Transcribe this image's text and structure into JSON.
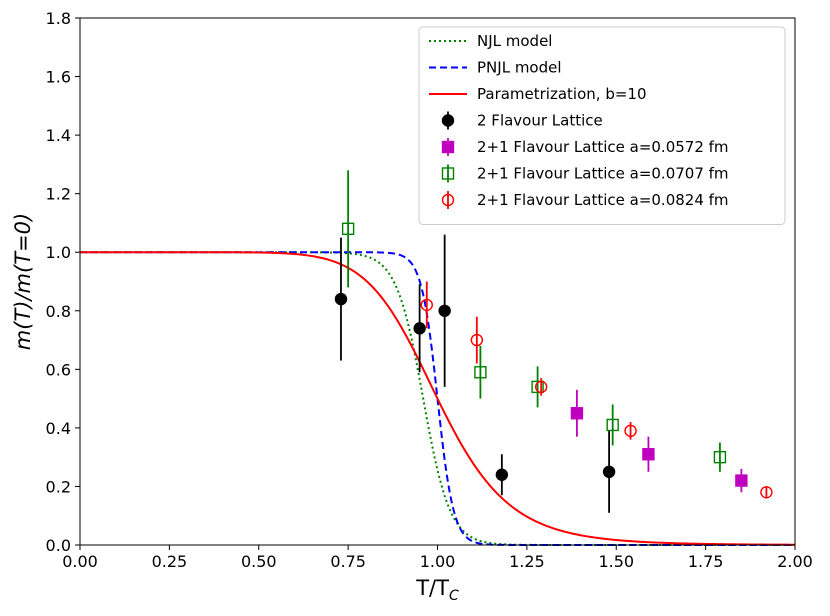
{
  "chart_data": {
    "type": "line",
    "title": "",
    "xlabel": "T/T_C",
    "xlabel_main": "T/T",
    "xlabel_sub": "C",
    "ylabel": "m(T)/m(T=0)",
    "xlim": [
      0.0,
      2.0
    ],
    "ylim": [
      0.0,
      1.8
    ],
    "xticks": [
      0.0,
      0.25,
      0.5,
      0.75,
      1.0,
      1.25,
      1.5,
      1.75,
      2.0
    ],
    "xtick_labels": [
      "0.00",
      "0.25",
      "0.50",
      "0.75",
      "1.00",
      "1.25",
      "1.50",
      "1.75",
      "2.00"
    ],
    "yticks": [
      0.0,
      0.2,
      0.4,
      0.6,
      0.8,
      1.0,
      1.2,
      1.4,
      1.6,
      1.8
    ],
    "ytick_labels": [
      "0.0",
      "0.2",
      "0.4",
      "0.6",
      "0.8",
      "1.0",
      "1.2",
      "1.4",
      "1.6",
      "1.8"
    ],
    "grid": false,
    "legend_position": "top-right",
    "curves": [
      {
        "name": "NJL model",
        "color": "#008000",
        "dash": "dotted",
        "model": {
          "center": 0.96,
          "width": 0.075,
          "kind": "tanh"
        }
      },
      {
        "name": "PNJL model",
        "color": "#0000ff",
        "dash": "dashed",
        "model": {
          "center": 1.0,
          "width": 0.045,
          "kind": "tanh"
        }
      },
      {
        "name": "Parametrization, b=10",
        "color": "#ff0000",
        "dash": "solid",
        "model": {
          "center": 1.0,
          "power": 10,
          "kind": "power"
        }
      }
    ],
    "series": [
      {
        "name": "2 Flavour Lattice",
        "marker": "circle",
        "filled": true,
        "color": "#000000",
        "points": [
          {
            "x": 0.73,
            "y": 0.84,
            "err": 0.21
          },
          {
            "x": 0.95,
            "y": 0.74,
            "err": 0.15
          },
          {
            "x": 1.02,
            "y": 0.8,
            "err": 0.26
          },
          {
            "x": 1.18,
            "y": 0.24,
            "err": 0.07
          },
          {
            "x": 1.48,
            "y": 0.25,
            "err": 0.14
          }
        ]
      },
      {
        "name": "2+1 Flavour Lattice a=0.0572 fm",
        "marker": "square",
        "filled": true,
        "color": "#bf00bf",
        "points": [
          {
            "x": 1.39,
            "y": 0.45,
            "err": 0.08
          },
          {
            "x": 1.59,
            "y": 0.31,
            "err": 0.06
          },
          {
            "x": 1.85,
            "y": 0.22,
            "err": 0.04
          }
        ]
      },
      {
        "name": "2+1 Flavour Lattice a=0.0707 fm",
        "marker": "square",
        "filled": false,
        "color": "#008000",
        "points": [
          {
            "x": 0.75,
            "y": 1.08,
            "err": 0.2
          },
          {
            "x": 1.12,
            "y": 0.59,
            "err": 0.09
          },
          {
            "x": 1.28,
            "y": 0.54,
            "err": 0.07
          },
          {
            "x": 1.49,
            "y": 0.41,
            "err": 0.07
          },
          {
            "x": 1.79,
            "y": 0.3,
            "err": 0.05
          }
        ]
      },
      {
        "name": "2+1 Flavour Lattice a=0.0824 fm",
        "marker": "circle",
        "filled": false,
        "color": "#ff0000",
        "points": [
          {
            "x": 0.97,
            "y": 0.82,
            "err": 0.08
          },
          {
            "x": 1.11,
            "y": 0.7,
            "err": 0.08
          },
          {
            "x": 1.29,
            "y": 0.54,
            "err": 0.03
          },
          {
            "x": 1.54,
            "y": 0.39,
            "err": 0.03
          },
          {
            "x": 1.92,
            "y": 0.18,
            "err": 0.02
          }
        ]
      }
    ]
  }
}
